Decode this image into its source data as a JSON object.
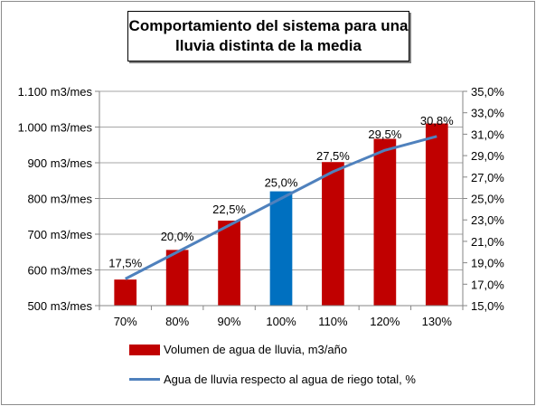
{
  "chart_data": {
    "type": "bar",
    "title_lines": [
      "Comportamiento del sistema para una",
      "lluvia distinta de la media"
    ],
    "categories": [
      "70%",
      "80%",
      "90%",
      "100%",
      "110%",
      "120%",
      "130%"
    ],
    "bar_series": {
      "name": "Volumen de agua de lluvia, m3/año",
      "values": [
        573,
        656,
        738,
        820,
        902,
        967,
        1010
      ],
      "color": "#c00000",
      "highlight_index": 3,
      "highlight_color": "#0070c0"
    },
    "line_series": {
      "name": "Agua de lluvia respecto al agua de riego total, %",
      "values": [
        17.5,
        20.0,
        22.5,
        25.0,
        27.5,
        29.5,
        30.8
      ],
      "labels": [
        "17,5%",
        "20,0%",
        "22,5%",
        "25,0%",
        "27,5%",
        "29,5%",
        "30,8%"
      ],
      "color": "#4f81bd"
    },
    "y_left": {
      "min": 500,
      "max": 1100,
      "step": 100,
      "tick_labels": [
        "500 m3/mes",
        "600 m3/mes",
        "700 m3/mes",
        "800 m3/mes",
        "900 m3/mes",
        "1.000 m3/mes",
        "1.100 m3/mes"
      ]
    },
    "y_right": {
      "min": 15,
      "max": 35,
      "step": 2,
      "tick_labels": [
        "15,0%",
        "17,0%",
        "19,0%",
        "21,0%",
        "23,0%",
        "25,0%",
        "27,0%",
        "29,0%",
        "31,0%",
        "33,0%",
        "35,0%"
      ]
    },
    "grid": true,
    "legend_position": "bottom"
  }
}
